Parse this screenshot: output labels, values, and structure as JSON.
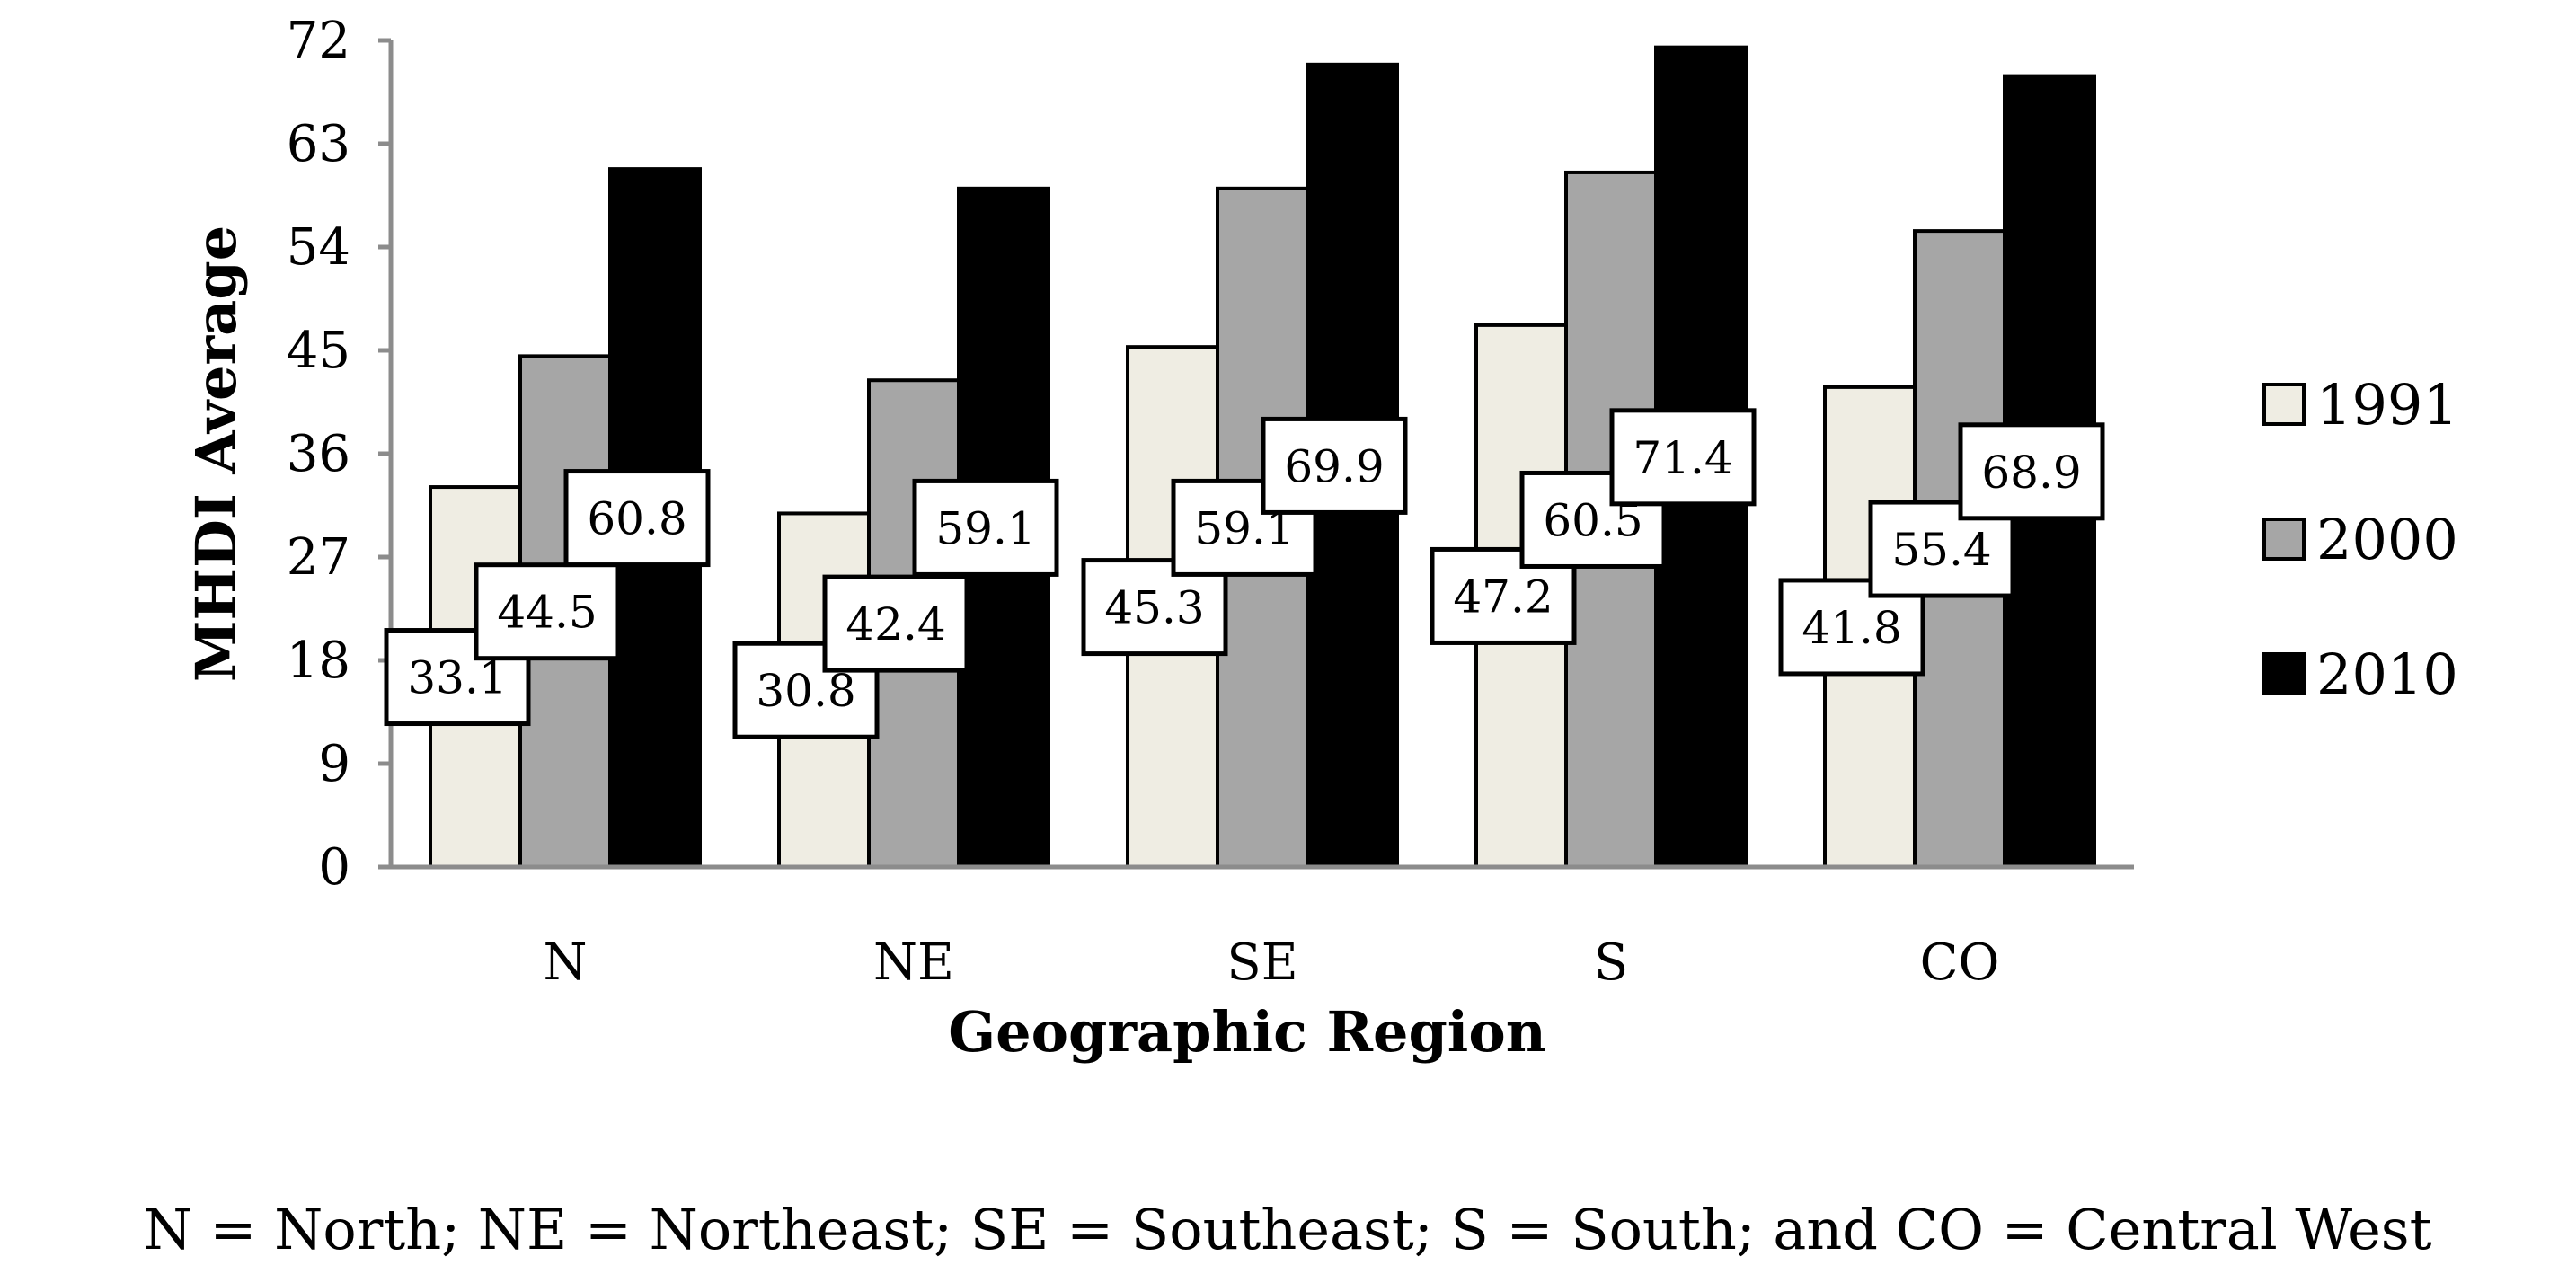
{
  "chart_data": {
    "type": "bar",
    "xlabel": "Geographic Region",
    "ylabel": "MHDI Average",
    "ylim": [
      0,
      72
    ],
    "yticks": [
      0,
      9,
      18,
      27,
      36,
      45,
      54,
      63,
      72
    ],
    "categories": [
      "N",
      "NE",
      "SE",
      "S",
      "CO"
    ],
    "series": [
      {
        "name": "1991",
        "color": "#efede3",
        "values": [
          33.1,
          30.8,
          45.3,
          47.2,
          41.8
        ]
      },
      {
        "name": "2000",
        "color": "#a6a6a6",
        "values": [
          44.5,
          42.4,
          59.1,
          60.5,
          55.4
        ]
      },
      {
        "name": "2010",
        "color": "#000000",
        "values": [
          60.8,
          59.1,
          69.9,
          71.4,
          68.9
        ]
      }
    ],
    "data_labels": true,
    "grid": false,
    "legend_position": "right",
    "footnote": "N = North; NE = Northeast; SE = Southeast; S = South; and CO = Central West"
  }
}
